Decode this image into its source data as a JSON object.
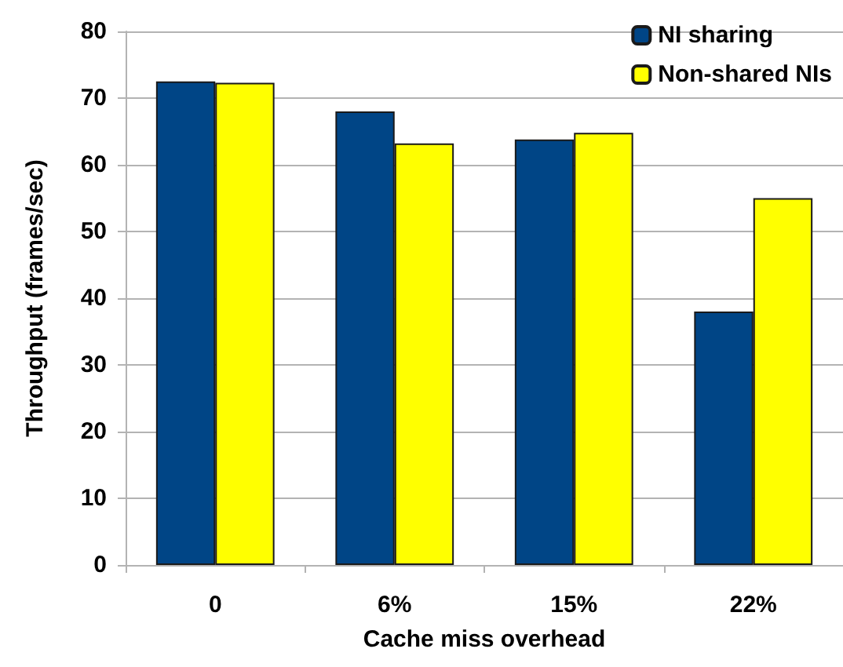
{
  "chart_data": {
    "type": "bar",
    "xlabel": "Cache miss overhead",
    "ylabel": "Throughput (frames/sec)",
    "categories": [
      "0",
      "6%",
      "15%",
      "22%"
    ],
    "series": [
      {
        "name": "NI sharing",
        "color": "#004586",
        "values": [
          72.5,
          68,
          63.8,
          38
        ]
      },
      {
        "name": "Non-shared NIs",
        "color": "#ffff00",
        "values": [
          72.3,
          63.2,
          64.8,
          55
        ]
      }
    ],
    "ylim": [
      0,
      80
    ],
    "yticks": [
      0,
      10,
      20,
      30,
      40,
      50,
      60,
      70,
      80
    ],
    "grid": "y",
    "legend": "top right"
  }
}
